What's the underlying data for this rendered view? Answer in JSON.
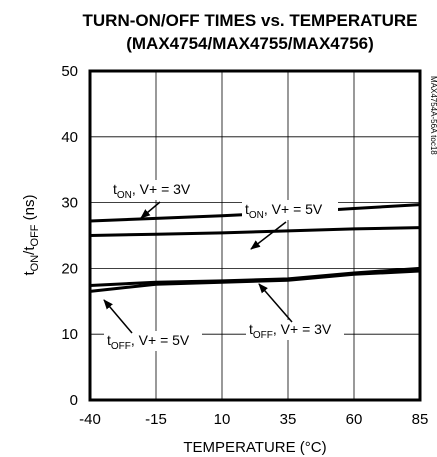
{
  "chart_data": {
    "type": "line",
    "title_line1": "TURN-ON/OFF TIMES vs. TEMPERATURE",
    "title_line2": "(MAX4754/MAX4755/MAX4756)",
    "xlabel": "TEMPERATURE (°C)",
    "ylabel_parts": [
      "t",
      "ON",
      "/t",
      "OFF",
      " (ns)"
    ],
    "side_label": "MAX4754A-56A toc18",
    "xlim": [
      -40,
      85
    ],
    "ylim": [
      0,
      50
    ],
    "xticks": [
      -40,
      -15,
      10,
      35,
      60,
      85
    ],
    "yticks": [
      0,
      10,
      20,
      30,
      40,
      50
    ],
    "x_tick_labels": [
      "-40",
      "-15",
      "10",
      "35",
      "60",
      "85"
    ],
    "y_tick_labels": [
      "0",
      "10",
      "20",
      "30",
      "40",
      "50"
    ],
    "grid": true,
    "series": [
      {
        "label_main": "t",
        "label_sub": "ON",
        "label_rest": ", V+ = 3V",
        "x": [
          -40,
          -15,
          10,
          35,
          60,
          85
        ],
        "y": [
          27.2,
          27.6,
          28.0,
          28.5,
          29.1,
          29.7
        ]
      },
      {
        "label_main": "t",
        "label_sub": "ON",
        "label_rest": ", V+ = 5V",
        "x": [
          -40,
          -15,
          10,
          35,
          60,
          85
        ],
        "y": [
          25.0,
          25.2,
          25.4,
          25.7,
          26.0,
          26.2
        ]
      },
      {
        "label_main": "t",
        "label_sub": "OFF",
        "label_rest": ", V+ = 3V",
        "x": [
          -40,
          -15,
          10,
          35,
          60,
          85
        ],
        "y": [
          17.4,
          17.9,
          18.1,
          18.4,
          19.3,
          20.0
        ]
      },
      {
        "label_main": "t",
        "label_sub": "OFF",
        "label_rest": ", V+ = 5V",
        "x": [
          -40,
          -15,
          10,
          35,
          60,
          85
        ],
        "y": [
          16.5,
          17.6,
          17.9,
          18.2,
          19.1,
          19.6
        ]
      }
    ]
  }
}
